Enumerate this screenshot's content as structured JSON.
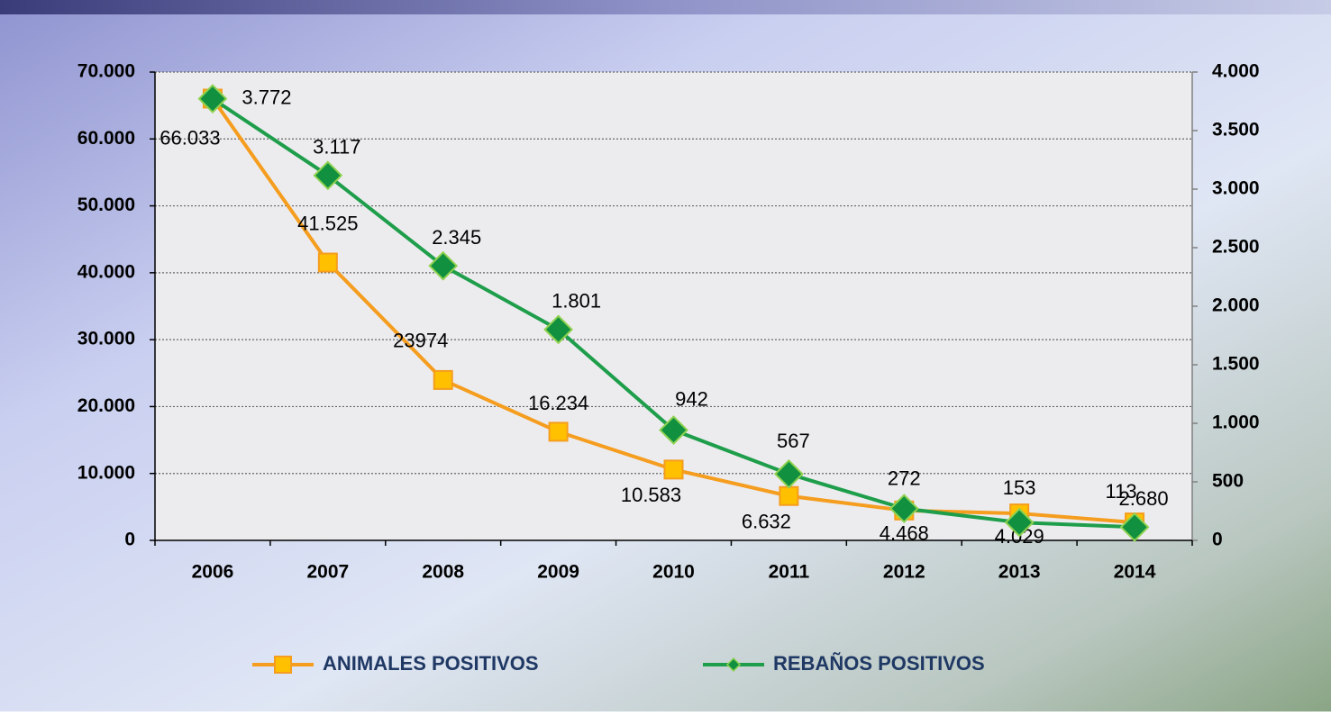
{
  "chart_data": {
    "type": "line",
    "categories": [
      "2006",
      "2007",
      "2008",
      "2009",
      "2010",
      "2011",
      "2012",
      "2013",
      "2014"
    ],
    "series": [
      {
        "name": "ANIMALES POSITIVOS",
        "color": "#f59d1e",
        "marker_color": "#ffc000",
        "values": [
          66033,
          41525,
          23974,
          16234,
          10583,
          6632,
          4468,
          4029,
          2680
        ],
        "value_labels": [
          "66.033",
          "41.525",
          "23974",
          "16.234",
          "10.583",
          "6.632",
          "4.468",
          "4.029",
          "2.680"
        ]
      },
      {
        "name": "REBAÑOS POSITIVOS",
        "color": "#1e9e4a",
        "marker_color": "#119040",
        "axis": "y2",
        "values": [
          3772,
          3117,
          2345,
          1801,
          942,
          567,
          272,
          153,
          113
        ],
        "value_labels": [
          "3.772",
          "3.117",
          "2.345",
          "1.801",
          "942",
          "567",
          "272",
          "153",
          "113"
        ]
      }
    ],
    "ylim": [
      0,
      70000
    ],
    "yticks": [
      0,
      {
        "value": 10000,
        "label": "10.000"
      },
      {
        "value": 20000,
        "label": "20.000"
      },
      {
        "value": 30000,
        "label": "30.000"
      },
      {
        "value": 40000,
        "label": "40.000"
      },
      {
        "value": 50000,
        "label": "50.000"
      },
      {
        "value": 60000,
        "label": "60.000"
      },
      {
        "value": 70000,
        "label": "70.000"
      }
    ],
    "y2lim": [
      0,
      4000
    ],
    "y2ticks": [
      0,
      500,
      {
        "value": 1000,
        "label": "1.000"
      },
      {
        "value": 1500,
        "label": "1.500"
      },
      {
        "value": 2000,
        "label": "2.000"
      },
      {
        "value": 2500,
        "label": "2.500"
      },
      {
        "value": 3000,
        "label": "3.000"
      },
      {
        "value": 3500,
        "label": "3.500"
      },
      {
        "value": 4000,
        "label": "4.000"
      }
    ],
    "grid": true,
    "legend": "bottom"
  }
}
